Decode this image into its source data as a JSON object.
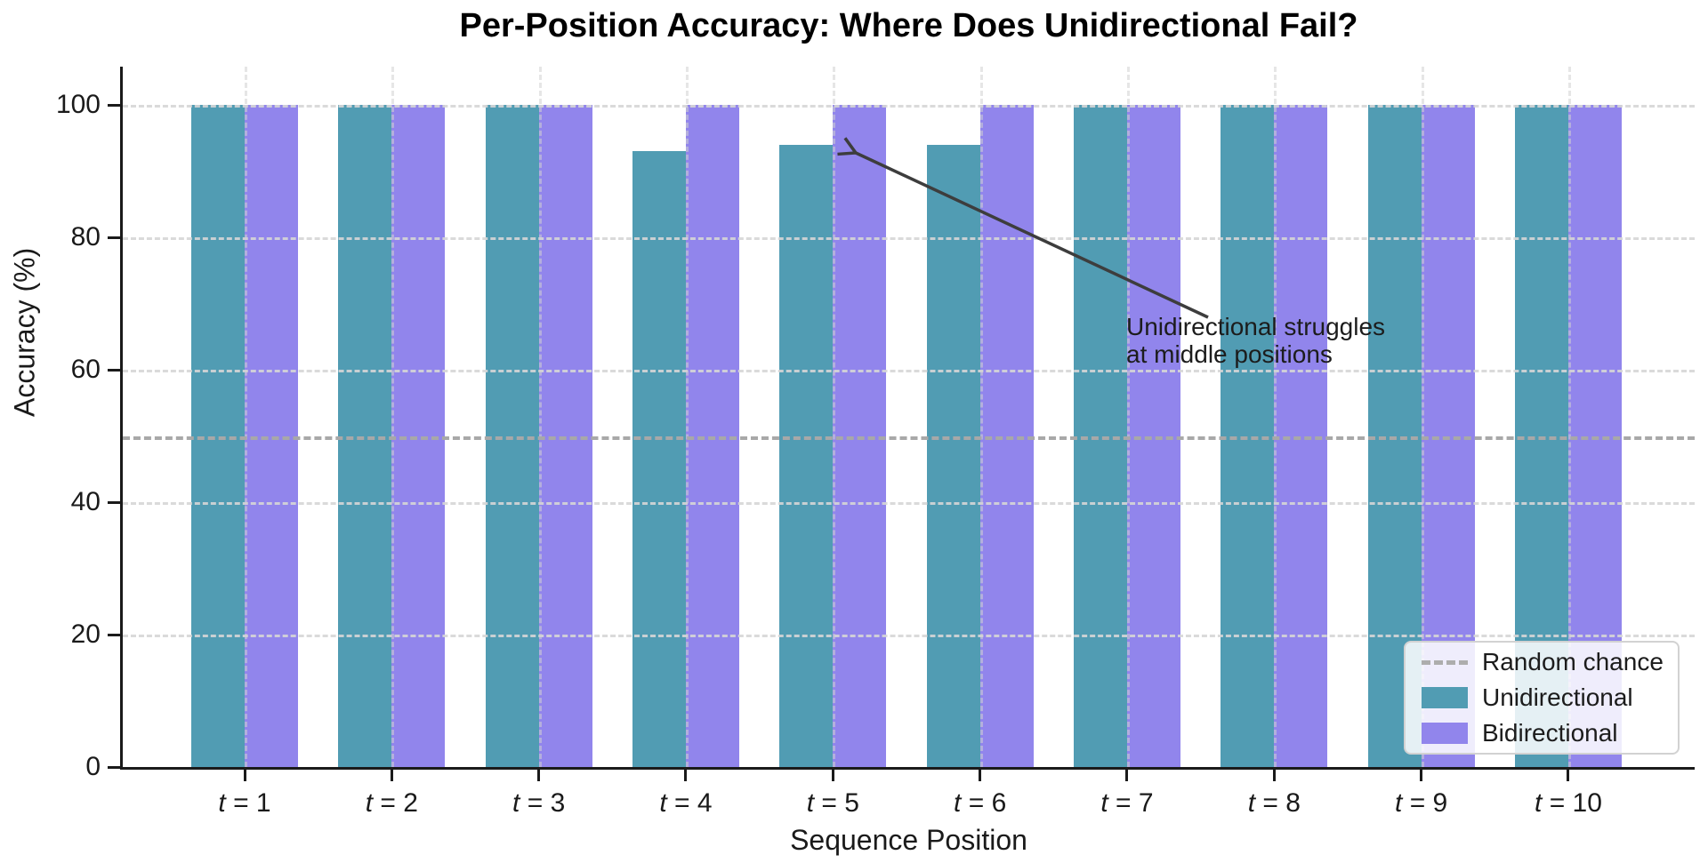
{
  "chart_data": {
    "type": "bar",
    "title": "Per-Position Accuracy: Where Does Unidirectional Fail?",
    "xlabel": "Sequence Position",
    "ylabel": "Accuracy (%)",
    "categories": [
      "t = 1",
      "t = 2",
      "t = 3",
      "t = 4",
      "t = 5",
      "t = 6",
      "t = 7",
      "t = 8",
      "t = 9",
      "t = 10"
    ],
    "series": [
      {
        "name": "Unidirectional",
        "color": "#519cb3",
        "values": [
          100,
          100,
          100,
          93,
          94,
          94,
          100,
          100,
          100,
          100
        ]
      },
      {
        "name": "Bidirectional",
        "color": "#9185ec",
        "values": [
          100,
          100,
          100,
          100,
          100,
          100,
          100,
          100,
          100,
          100
        ]
      }
    ],
    "yticks": [
      0,
      20,
      40,
      60,
      80,
      100
    ],
    "ylim": [
      0,
      106
    ],
    "grid": {
      "style": "dashed",
      "horizontal": true,
      "vertical": true,
      "color": "#d6d6d6"
    },
    "reference_line": {
      "label": "Random chance",
      "value": 50,
      "color": "#a8a8a8",
      "style": "dashed"
    },
    "annotation": {
      "text": "Unidirectional struggles\nat middle positions",
      "arrow_color": "#3d3d3d",
      "target": "top of Unidirectional bar at t = 5 (94%)"
    },
    "legend": {
      "position": "lower right",
      "entries": [
        {
          "label": "Random chance",
          "swatch": "dashed-line",
          "color": "#adadad"
        },
        {
          "label": "Unidirectional",
          "swatch": "rect",
          "color": "#519cb3"
        },
        {
          "label": "Bidirectional",
          "swatch": "rect",
          "color": "#9185ec"
        }
      ]
    }
  }
}
